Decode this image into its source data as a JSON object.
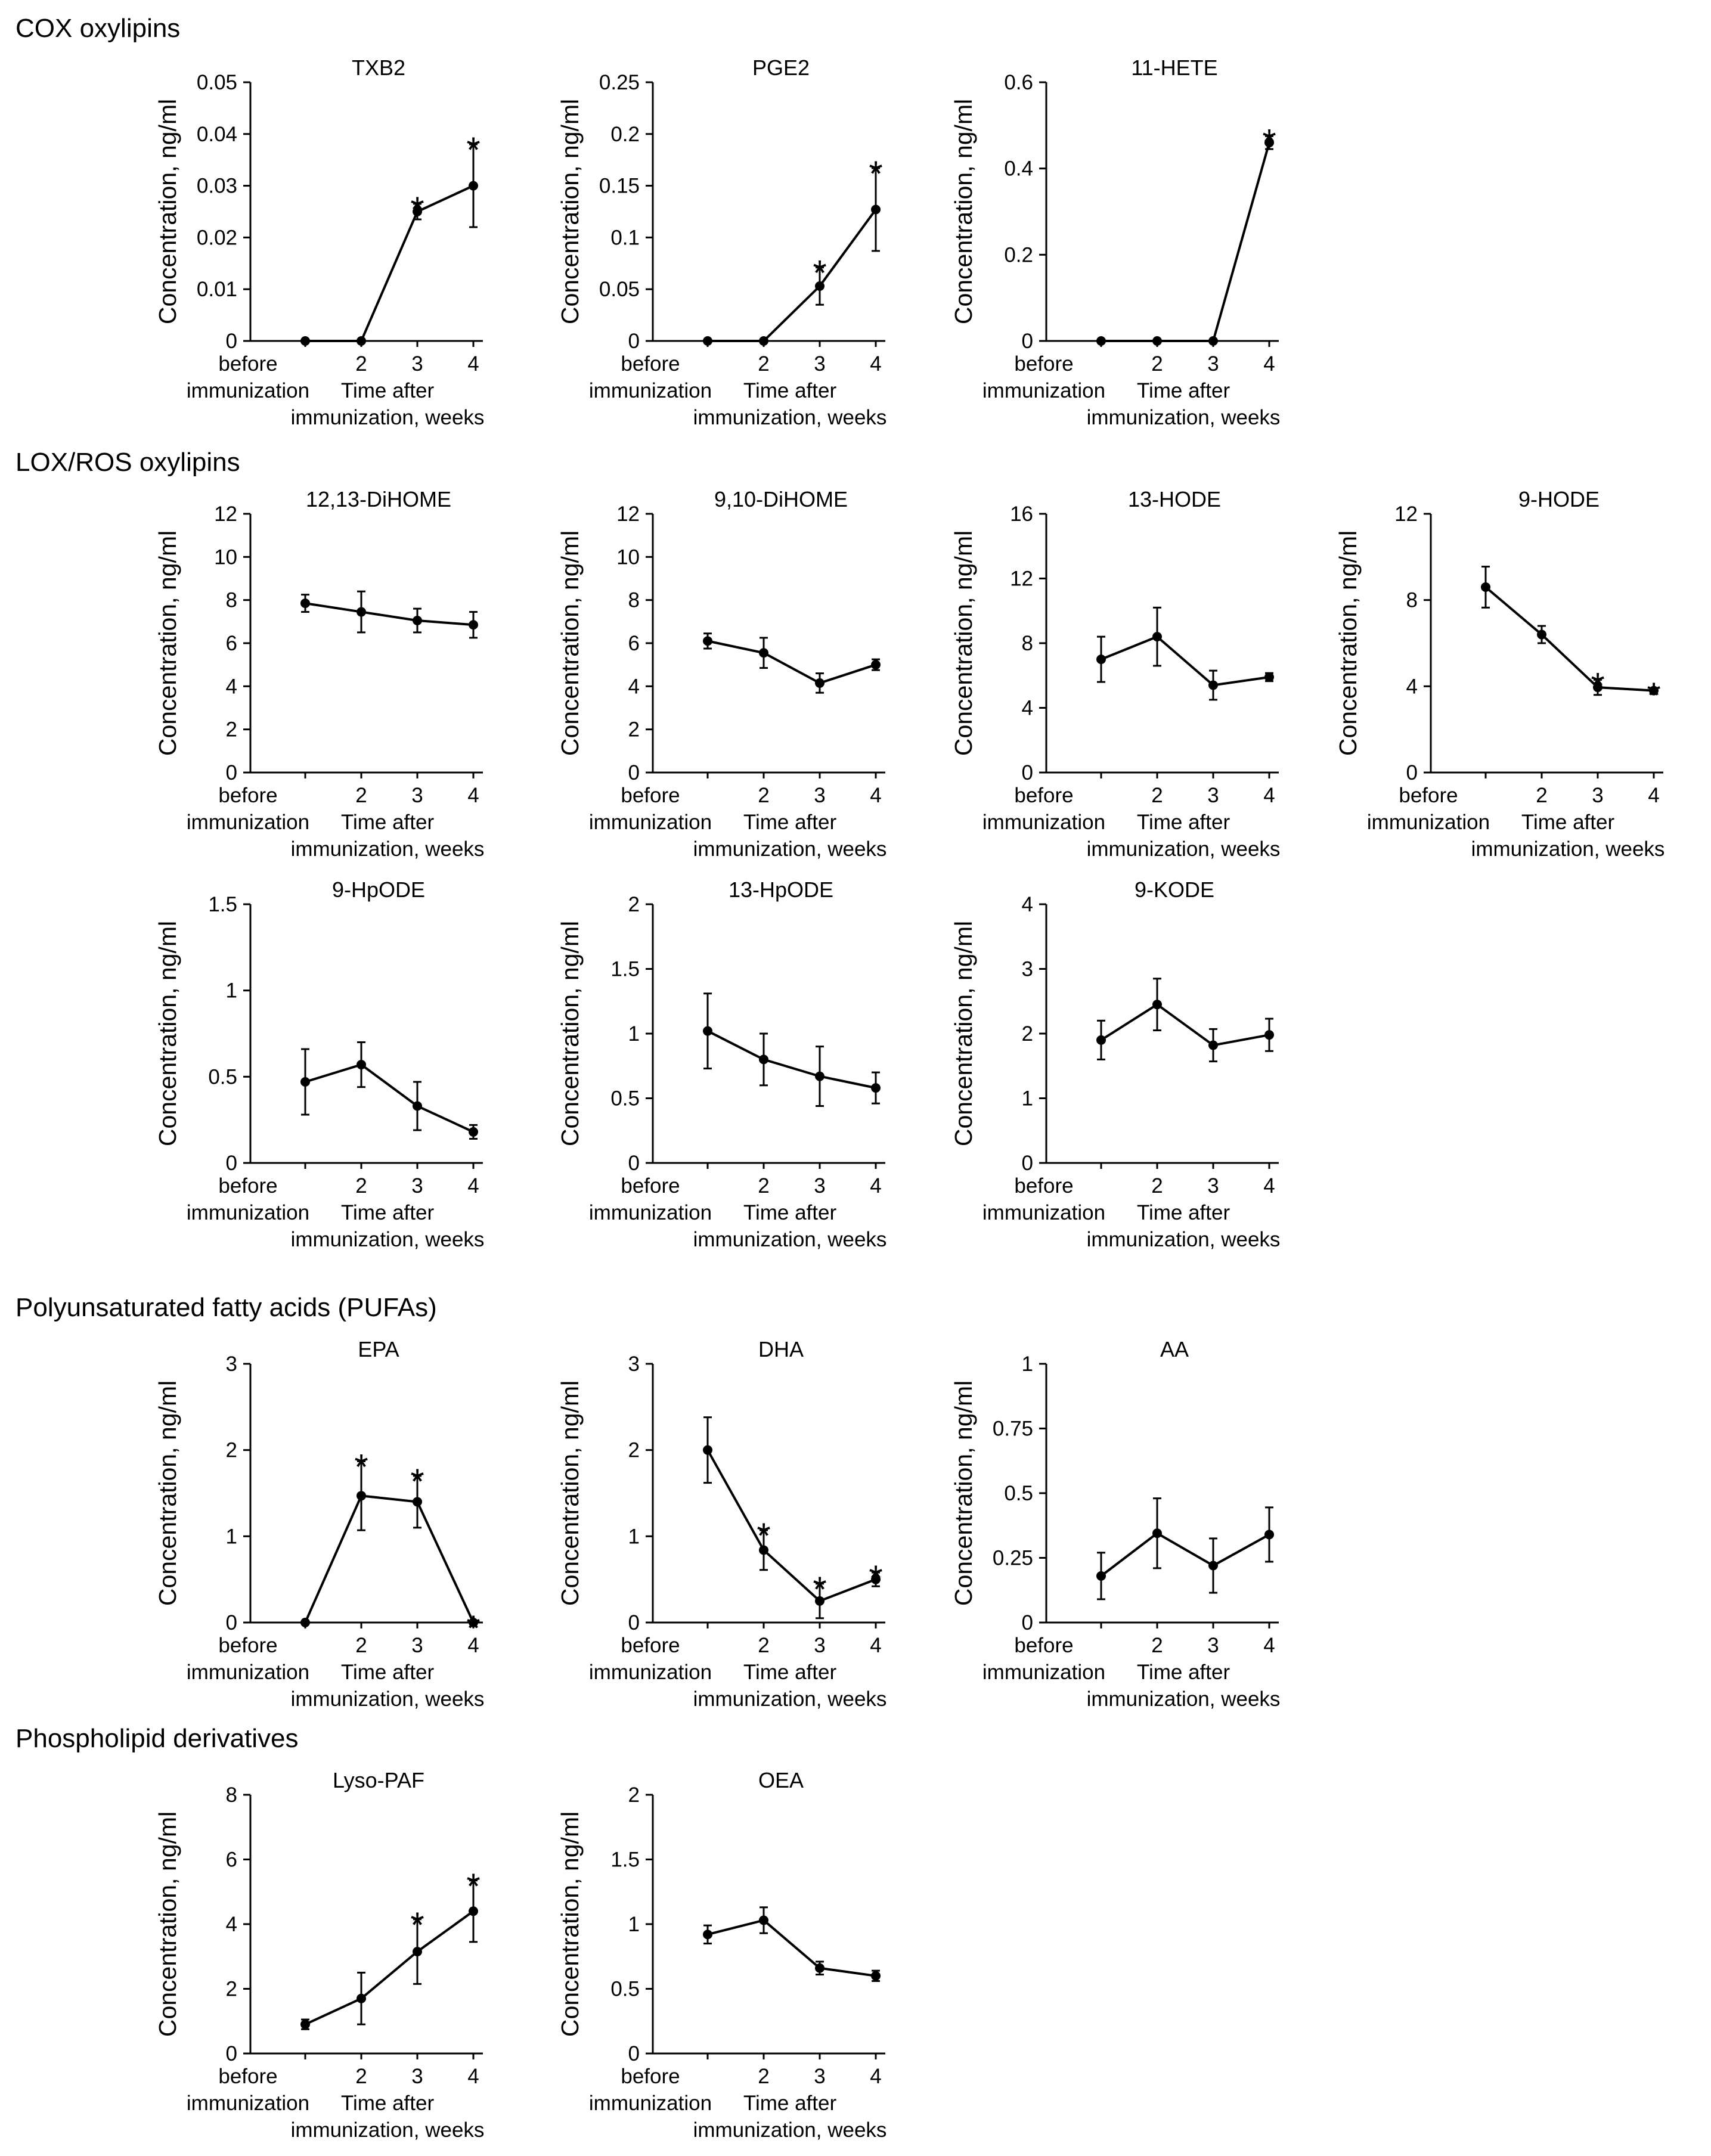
{
  "sections": [
    {
      "title": "COX oxylipins"
    },
    {
      "title": "LOX/ROS oxylipins"
    },
    {
      "title": "Polyunsaturated fatty acids (PUFAs)"
    },
    {
      "title": "Phospholipid derivatives"
    }
  ],
  "common": {
    "ylabel": "Concentration, ng/ml",
    "categories": [
      "before\nimmunization",
      "2",
      "3",
      "4"
    ],
    "xlabel": "Time after\nimmunization, weeks",
    "significance_mark": "*"
  },
  "chart_data": [
    {
      "type": "line",
      "section": 0,
      "title": "TXB2",
      "categories": [
        "before immunization",
        "2",
        "3",
        "4"
      ],
      "values": [
        0,
        0,
        0.025,
        0.03
      ],
      "errors": [
        0,
        0,
        0.0015,
        0.008
      ],
      "significant": [
        false,
        false,
        true,
        true
      ],
      "ylim": [
        0,
        0.05
      ],
      "yticks": [
        "0",
        "0.01",
        "0.02",
        "0.03",
        "0.04",
        "0.05"
      ]
    },
    {
      "type": "line",
      "section": 0,
      "title": "PGE2",
      "categories": [
        "before immunization",
        "2",
        "3",
        "4"
      ],
      "values": [
        0,
        0,
        0.053,
        0.127
      ],
      "errors": [
        0,
        0,
        0.018,
        0.04
      ],
      "significant": [
        false,
        false,
        true,
        true
      ],
      "ylim": [
        0,
        0.25
      ],
      "yticks": [
        "0",
        "0.05",
        "0.1",
        "0.15",
        "0.2",
        "0.25"
      ]
    },
    {
      "type": "line",
      "section": 0,
      "title": "11-HETE",
      "categories": [
        "before immunization",
        "2",
        "3",
        "4"
      ],
      "values": [
        0,
        0,
        0,
        0.46
      ],
      "errors": [
        0,
        0,
        0,
        0.015
      ],
      "significant": [
        false,
        false,
        false,
        true
      ],
      "ylim": [
        0,
        0.6
      ],
      "yticks": [
        "0",
        "0.2",
        "0.4",
        "0.6"
      ]
    },
    {
      "type": "line",
      "section": 1,
      "title": "12,13-DiHOME",
      "categories": [
        "before immunization",
        "2",
        "3",
        "4"
      ],
      "values": [
        7.85,
        7.45,
        7.05,
        6.85
      ],
      "errors": [
        0.4,
        0.95,
        0.55,
        0.6
      ],
      "significant": [
        false,
        false,
        false,
        false
      ],
      "ylim": [
        0,
        12
      ],
      "yticks": [
        "0",
        "2",
        "4",
        "6",
        "8",
        "10",
        "12"
      ]
    },
    {
      "type": "line",
      "section": 1,
      "title": "9,10-DiHOME",
      "categories": [
        "before immunization",
        "2",
        "3",
        "4"
      ],
      "values": [
        6.1,
        5.55,
        4.15,
        5.0
      ],
      "errors": [
        0.35,
        0.7,
        0.45,
        0.25
      ],
      "significant": [
        false,
        false,
        false,
        false
      ],
      "ylim": [
        0,
        12
      ],
      "yticks": [
        "0",
        "2",
        "4",
        "6",
        "8",
        "10",
        "12"
      ]
    },
    {
      "type": "line",
      "section": 1,
      "title": "13-HODE",
      "categories": [
        "before immunization",
        "2",
        "3",
        "4"
      ],
      "values": [
        7.0,
        8.4,
        5.4,
        5.9
      ],
      "errors": [
        1.4,
        1.8,
        0.9,
        0.25
      ],
      "significant": [
        false,
        false,
        false,
        false
      ],
      "ylim": [
        0,
        16
      ],
      "yticks": [
        "0",
        "4",
        "8",
        "12",
        "16"
      ]
    },
    {
      "type": "line",
      "section": 1,
      "title": "9-HODE",
      "categories": [
        "before immunization",
        "2",
        "3",
        "4"
      ],
      "values": [
        8.6,
        6.4,
        3.95,
        3.8
      ],
      "errors": [
        0.95,
        0.4,
        0.35,
        0.05
      ],
      "significant": [
        false,
        false,
        true,
        true
      ],
      "ylim": [
        0,
        12
      ],
      "yticks": [
        "0",
        "4",
        "8",
        "12"
      ]
    },
    {
      "type": "line",
      "section": 1,
      "title": "9-HpODE",
      "categories": [
        "before immunization",
        "2",
        "3",
        "4"
      ],
      "values": [
        0.47,
        0.57,
        0.33,
        0.18
      ],
      "errors": [
        0.19,
        0.13,
        0.14,
        0.04
      ],
      "significant": [
        false,
        false,
        false,
        false
      ],
      "ylim": [
        0,
        1.5
      ],
      "yticks": [
        "0",
        "0.5",
        "1",
        "1.5"
      ]
    },
    {
      "type": "line",
      "section": 1,
      "title": "13-HpODE",
      "categories": [
        "before immunization",
        "2",
        "3",
        "4"
      ],
      "values": [
        1.02,
        0.8,
        0.67,
        0.58
      ],
      "errors": [
        0.29,
        0.2,
        0.23,
        0.12
      ],
      "significant": [
        false,
        false,
        false,
        false
      ],
      "ylim": [
        0,
        2
      ],
      "yticks": [
        "0",
        "0.5",
        "1",
        "1.5",
        "2"
      ]
    },
    {
      "type": "line",
      "section": 1,
      "title": "9-KODE",
      "categories": [
        "before immunization",
        "2",
        "3",
        "4"
      ],
      "values": [
        1.9,
        2.45,
        1.82,
        1.98
      ],
      "errors": [
        0.3,
        0.4,
        0.25,
        0.25
      ],
      "significant": [
        false,
        false,
        false,
        false
      ],
      "ylim": [
        0,
        4
      ],
      "yticks": [
        "0",
        "1",
        "2",
        "3",
        "4"
      ]
    },
    {
      "type": "line",
      "section": 2,
      "title": "EPA",
      "categories": [
        "before immunization",
        "2",
        "3",
        "4"
      ],
      "values": [
        0,
        1.47,
        1.4,
        0
      ],
      "errors": [
        0,
        0.4,
        0.3,
        0
      ],
      "significant": [
        false,
        true,
        true,
        true
      ],
      "ylim": [
        0,
        3
      ],
      "yticks": [
        "0",
        "1",
        "2",
        "3"
      ]
    },
    {
      "type": "line",
      "section": 2,
      "title": "DHA",
      "categories": [
        "before immunization",
        "2",
        "3",
        "4"
      ],
      "values": [
        2.0,
        0.84,
        0.25,
        0.5
      ],
      "errors": [
        0.38,
        0.23,
        0.2,
        0.08
      ],
      "significant": [
        false,
        true,
        true,
        true
      ],
      "ylim": [
        0,
        3
      ],
      "yticks": [
        "0",
        "1",
        "2",
        "3"
      ]
    },
    {
      "type": "line",
      "section": 2,
      "title": "AA",
      "categories": [
        "before immunization",
        "2",
        "3",
        "4"
      ],
      "values": [
        0.18,
        0.345,
        0.22,
        0.34
      ],
      "errors": [
        0.09,
        0.135,
        0.105,
        0.105
      ],
      "significant": [
        false,
        false,
        false,
        false
      ],
      "ylim": [
        0,
        1
      ],
      "yticks": [
        "0",
        "0.25",
        "0.5",
        "0.75",
        "1"
      ]
    },
    {
      "type": "line",
      "section": 3,
      "title": "Lyso-PAF",
      "categories": [
        "before immunization",
        "2",
        "3",
        "4"
      ],
      "values": [
        0.9,
        1.7,
        3.15,
        4.4
      ],
      "errors": [
        0.15,
        0.8,
        1.0,
        0.95
      ],
      "significant": [
        false,
        false,
        true,
        true
      ],
      "ylim": [
        0,
        8
      ],
      "yticks": [
        "0",
        "2",
        "4",
        "6",
        "8"
      ]
    },
    {
      "type": "line",
      "section": 3,
      "title": "OEA",
      "categories": [
        "before immunization",
        "2",
        "3",
        "4"
      ],
      "values": [
        0.92,
        1.03,
        0.66,
        0.6
      ],
      "errors": [
        0.07,
        0.1,
        0.05,
        0.04
      ],
      "significant": [
        false,
        false,
        false,
        false
      ],
      "ylim": [
        0,
        2
      ],
      "yticks": [
        "0",
        "0.5",
        "1",
        "1.5",
        "2"
      ]
    }
  ]
}
